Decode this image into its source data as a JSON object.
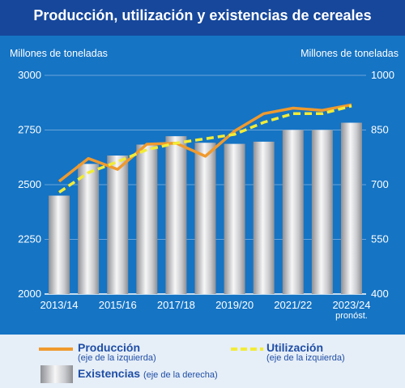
{
  "chart_data": {
    "type": "bar+line",
    "title": "Producción, utilización y existencias de cereales",
    "ylabel_left": "Millones de toneladas",
    "ylabel_right": "Millones de toneladas",
    "ylim_left": [
      2000,
      3000
    ],
    "ylim_right": [
      400,
      1000
    ],
    "yticks_left": [
      "2000",
      "2250",
      "2500",
      "2750",
      "3000"
    ],
    "yticks_right": [
      "400",
      "550",
      "700",
      "850",
      "1000"
    ],
    "categories": [
      "2013/14",
      "2014/15",
      "2015/16",
      "2016/17",
      "2017/18",
      "2018/19",
      "2019/20",
      "2020/21",
      "2021/22",
      "2022/23",
      "2023/24"
    ],
    "xtick_labels": [
      "2013/14",
      "",
      "2015/16",
      "",
      "2017/18",
      "",
      "2019/20",
      "",
      "2021/22",
      "",
      "2023/24"
    ],
    "xtick_note": "pronóst.",
    "series": [
      {
        "name": "Existencias",
        "axis": "right",
        "kind": "bar",
        "values": [
          670,
          757,
          780,
          810,
          833,
          815,
          812,
          818,
          850,
          850,
          870
        ]
      },
      {
        "name": "Producción",
        "axis": "left",
        "kind": "line",
        "values": [
          2515,
          2620,
          2570,
          2685,
          2690,
          2630,
          2745,
          2825,
          2850,
          2840,
          2865
        ]
      },
      {
        "name": "Utilización",
        "axis": "left",
        "kind": "dashed-line",
        "values": [
          2465,
          2555,
          2605,
          2660,
          2690,
          2710,
          2730,
          2785,
          2825,
          2825,
          2860
        ]
      }
    ],
    "legend": [
      {
        "label": "Producción",
        "note": "(eje de la izquierda)"
      },
      {
        "label": "Utilización",
        "note": "(eje de la izquierda)"
      },
      {
        "label": "Existencias",
        "note": "(eje de la derecha)"
      }
    ],
    "colors": {
      "background": "#1574c4",
      "title_band": "#16479b",
      "panel": "#e6eef7",
      "grid": "#6ba3d8",
      "production": "#ef9a2e",
      "utilization": "#f2ec37",
      "legend_text": "#1f4ea6"
    },
    "grid": true,
    "legend_position": "bottom"
  }
}
